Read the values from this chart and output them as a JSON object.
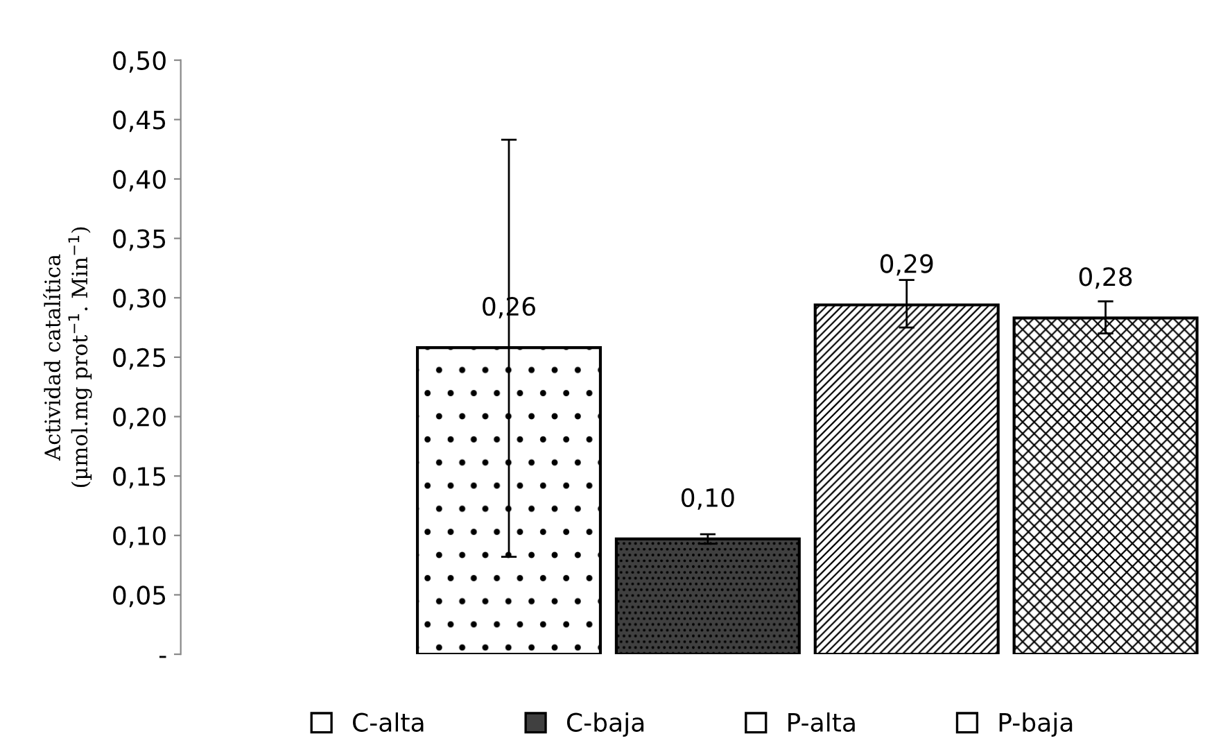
{
  "chart_data": {
    "type": "bar",
    "ylabel": "Actividad catalítica\n(µmol.mg prot$^{−1}$. Min$^{−1}$)",
    "categories": [
      null
    ],
    "series": [
      {
        "name": "C-alta",
        "color": "#ffffff",
        "values": [
          0.258
        ],
        "errors": [
          [
            0.082,
            0.433
          ]
        ],
        "value_labels": [
          "0,26"
        ]
      },
      {
        "name": "C-baja",
        "color": "#404040",
        "values": [
          0.097
        ],
        "errors": [
          [
            0.093,
            0.101
          ]
        ],
        "value_labels": [
          "0,10"
        ]
      },
      {
        "name": "P-alta",
        "color": "#ffffff",
        "values": [
          0.294
        ],
        "errors": [
          [
            0.275,
            0.315
          ]
        ],
        "value_labels": [
          "0,29"
        ]
      },
      {
        "name": "P-baja",
        "color": "#ffffff",
        "values": [
          0.283
        ],
        "errors": [
          [
            0.27,
            0.297
          ]
        ],
        "value_labels": [
          "0,28"
        ]
      }
    ],
    "ylim": [
      0,
      0.5
    ],
    "yticks": [
      {
        "value": 0,
        "label": "-"
      },
      {
        "value": 0.05,
        "label": "0,05"
      },
      {
        "value": 0.1,
        "label": "0,10"
      },
      {
        "value": 0.15,
        "label": "0,15"
      },
      {
        "value": 0.2,
        "label": "0,20"
      },
      {
        "value": 0.25,
        "label": "0,25"
      },
      {
        "value": 0.3,
        "label": "0,30"
      },
      {
        "value": 0.35,
        "label": "0,35"
      },
      {
        "value": 0.4,
        "label": "0,40"
      },
      {
        "value": 0.45,
        "label": "0,45"
      },
      {
        "value": 0.5,
        "label": "0,50"
      }
    ],
    "grid": false,
    "legend": "bottom"
  }
}
